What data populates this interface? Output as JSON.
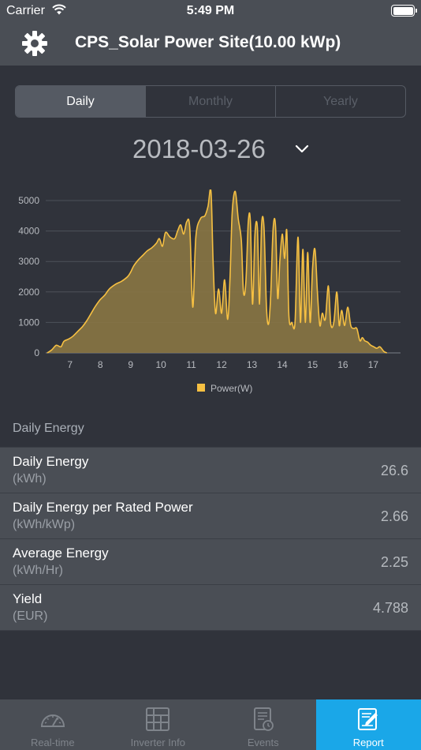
{
  "status_bar": {
    "carrier": "Carrier",
    "time": "5:49 PM"
  },
  "nav": {
    "title": "CPS_Solar Power Site(10.00 kWp)",
    "settings_icon": "gear-icon"
  },
  "segments": [
    {
      "label": "Daily",
      "active": true
    },
    {
      "label": "Monthly",
      "active": false
    },
    {
      "label": "Yearly",
      "active": false
    }
  ],
  "date": {
    "value": "2018-03-26",
    "icon": "chevron-down-icon"
  },
  "colors": {
    "accent": "#f6c042",
    "fill": "#8a7644",
    "tab_active": "#1aa7e8"
  },
  "chart_data": {
    "type": "area",
    "x_ticks": [
      "7",
      "8",
      "9",
      "10",
      "11",
      "12",
      "13",
      "14",
      "15",
      "16",
      "17"
    ],
    "y_ticks": [
      "0",
      "1000",
      "2000",
      "3000",
      "4000",
      "5000"
    ],
    "xlim": [
      6.2,
      17.9
    ],
    "ylim": [
      0,
      5000
    ],
    "grid": true,
    "legend_position": "bottom-center",
    "series": [
      {
        "name": "Power(W)",
        "points": [
          [
            6.25,
            0
          ],
          [
            6.4,
            100
          ],
          [
            6.55,
            250
          ],
          [
            6.7,
            200
          ],
          [
            6.8,
            380
          ],
          [
            6.95,
            450
          ],
          [
            7.1,
            550
          ],
          [
            7.25,
            700
          ],
          [
            7.4,
            850
          ],
          [
            7.55,
            1050
          ],
          [
            7.7,
            1300
          ],
          [
            7.85,
            1550
          ],
          [
            8.0,
            1750
          ],
          [
            8.15,
            1900
          ],
          [
            8.3,
            2100
          ],
          [
            8.5,
            2250
          ],
          [
            8.7,
            2350
          ],
          [
            8.9,
            2500
          ],
          [
            9.0,
            2650
          ],
          [
            9.1,
            2850
          ],
          [
            9.25,
            3050
          ],
          [
            9.4,
            3200
          ],
          [
            9.55,
            3350
          ],
          [
            9.7,
            3450
          ],
          [
            9.85,
            3600
          ],
          [
            9.95,
            3750
          ],
          [
            10.05,
            3500
          ],
          [
            10.15,
            3950
          ],
          [
            10.3,
            3800
          ],
          [
            10.45,
            3750
          ],
          [
            10.55,
            4000
          ],
          [
            10.65,
            4200
          ],
          [
            10.75,
            3900
          ],
          [
            10.85,
            4300
          ],
          [
            10.95,
            4100
          ],
          [
            11.05,
            1500
          ],
          [
            11.15,
            3800
          ],
          [
            11.3,
            4400
          ],
          [
            11.45,
            4500
          ],
          [
            11.55,
            4800
          ],
          [
            11.65,
            5300
          ],
          [
            11.72,
            3000
          ],
          [
            11.8,
            1300
          ],
          [
            11.9,
            2100
          ],
          [
            12.0,
            1300
          ],
          [
            12.1,
            2400
          ],
          [
            12.2,
            1100
          ],
          [
            12.28,
            2500
          ],
          [
            12.35,
            4600
          ],
          [
            12.45,
            5300
          ],
          [
            12.55,
            4400
          ],
          [
            12.65,
            3700
          ],
          [
            12.72,
            2000
          ],
          [
            12.8,
            2300
          ],
          [
            12.88,
            4300
          ],
          [
            12.95,
            4300
          ],
          [
            13.02,
            1600
          ],
          [
            13.1,
            3900
          ],
          [
            13.18,
            4100
          ],
          [
            13.25,
            1600
          ],
          [
            13.32,
            4200
          ],
          [
            13.4,
            4100
          ],
          [
            13.48,
            1500
          ],
          [
            13.55,
            950
          ],
          [
            13.62,
            1900
          ],
          [
            13.7,
            4100
          ],
          [
            13.78,
            4150
          ],
          [
            13.85,
            1800
          ],
          [
            13.92,
            3000
          ],
          [
            14.0,
            3900
          ],
          [
            14.08,
            3100
          ],
          [
            14.15,
            4000
          ],
          [
            14.22,
            1200
          ],
          [
            14.32,
            1000
          ],
          [
            14.42,
            1000
          ],
          [
            14.52,
            3800
          ],
          [
            14.6,
            1000
          ],
          [
            14.68,
            3400
          ],
          [
            14.76,
            1000
          ],
          [
            14.84,
            3300
          ],
          [
            14.92,
            1000
          ],
          [
            15.0,
            2800
          ],
          [
            15.08,
            3400
          ],
          [
            15.16,
            2000
          ],
          [
            15.24,
            900
          ],
          [
            15.32,
            1300
          ],
          [
            15.42,
            1100
          ],
          [
            15.52,
            2200
          ],
          [
            15.6,
            950
          ],
          [
            15.7,
            1000
          ],
          [
            15.8,
            2000
          ],
          [
            15.88,
            900
          ],
          [
            15.96,
            1400
          ],
          [
            16.06,
            900
          ],
          [
            16.16,
            1500
          ],
          [
            16.26,
            900
          ],
          [
            16.36,
            800
          ],
          [
            16.46,
            800
          ],
          [
            16.56,
            400
          ],
          [
            16.64,
            500
          ],
          [
            16.72,
            400
          ],
          [
            16.82,
            350
          ],
          [
            16.92,
            250
          ],
          [
            17.02,
            200
          ],
          [
            17.12,
            150
          ],
          [
            17.22,
            200
          ],
          [
            17.35,
            50
          ],
          [
            17.45,
            0
          ]
        ]
      }
    ]
  },
  "section": {
    "title": "Daily Energy"
  },
  "rows": [
    {
      "title": "Daily Energy",
      "unit": "(kWh)",
      "value": "26.6"
    },
    {
      "title": "Daily Energy per Rated Power",
      "unit": "(kWh/kWp)",
      "value": "2.66"
    },
    {
      "title": "Average Energy",
      "unit": "(kWh/Hr)",
      "value": "2.25"
    },
    {
      "title": "Yield",
      "unit": "(EUR)",
      "value": "4.788"
    }
  ],
  "tabs": [
    {
      "label": "Real-time",
      "icon": "gauge-icon",
      "active": false
    },
    {
      "label": "Inverter Info",
      "icon": "grid-icon",
      "active": false
    },
    {
      "label": "Events",
      "icon": "document-clock-icon",
      "active": false
    },
    {
      "label": "Report",
      "icon": "report-edit-icon",
      "active": true
    }
  ]
}
